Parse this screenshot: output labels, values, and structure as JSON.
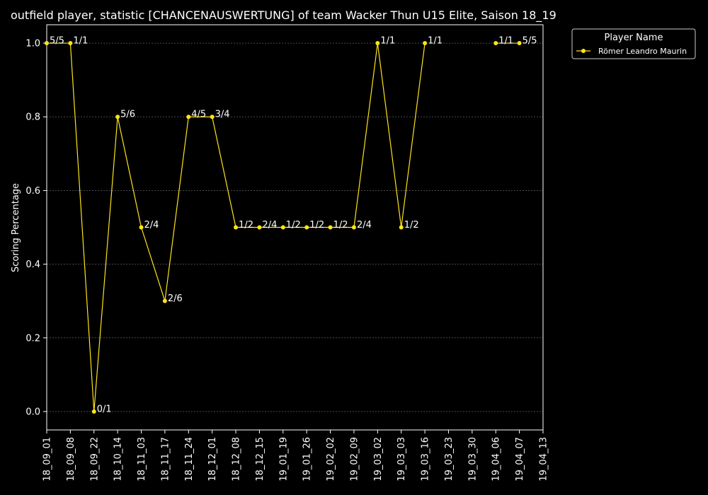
{
  "chart_data": {
    "type": "line",
    "title": "outfield player, statistic [CHANCENAUSWERTUNG] of team Wacker Thun U15 Elite, Saison 18_19",
    "xlabel": "",
    "ylabel": "Scoring Percentage",
    "ylim": [
      -0.05,
      1.05
    ],
    "yticks": [
      0.0,
      0.2,
      0.4,
      0.6,
      0.8,
      1.0
    ],
    "ytick_labels": [
      "0.0",
      "0.2",
      "0.4",
      "0.6",
      "0.8",
      "1.0"
    ],
    "categories": [
      "18_09_01",
      "18_09_08",
      "18_09_22",
      "18_10_14",
      "18_11_03",
      "18_11_17",
      "18_11_24",
      "18_12_01",
      "18_12_08",
      "18_12_15",
      "19_01_19",
      "19_01_26",
      "19_02_02",
      "19_02_09",
      "19_03_02",
      "19_03_03",
      "19_03_16",
      "19_03_23",
      "19_03_30",
      "19_04_06",
      "19_04_07",
      "19_04_13"
    ],
    "grid": true,
    "legend": {
      "title": "Player Name",
      "position": "outside-top-right"
    },
    "series": [
      {
        "name": "Römer Leandro Maurin",
        "color": "#ffe41a",
        "values": [
          1.0,
          1.0,
          0.0,
          0.8,
          0.5,
          0.3,
          0.8,
          0.8,
          0.5,
          0.5,
          0.5,
          0.5,
          0.5,
          0.5,
          1.0,
          0.5,
          1.0,
          null,
          null,
          1.0,
          1.0,
          null
        ]
      }
    ],
    "annotations": [
      {
        "x": "18_09_01",
        "y": 1.0,
        "text": "5/5"
      },
      {
        "x": "18_09_08",
        "y": 1.0,
        "text": "1/1"
      },
      {
        "x": "18_09_22",
        "y": 0.0,
        "text": "0/1"
      },
      {
        "x": "18_10_14",
        "y": 0.8,
        "text": "5/6"
      },
      {
        "x": "18_11_03",
        "y": 0.5,
        "text": "2/4"
      },
      {
        "x": "18_11_17",
        "y": 0.3,
        "text": "2/6"
      },
      {
        "x": "18_11_24",
        "y": 0.8,
        "text": "4/5"
      },
      {
        "x": "18_12_01",
        "y": 0.8,
        "text": "3/4"
      },
      {
        "x": "18_12_08",
        "y": 0.5,
        "text": "1/2"
      },
      {
        "x": "18_12_15",
        "y": 0.5,
        "text": "2/4"
      },
      {
        "x": "19_01_19",
        "y": 0.5,
        "text": "1/2"
      },
      {
        "x": "19_01_26",
        "y": 0.5,
        "text": "1/2"
      },
      {
        "x": "19_02_02",
        "y": 0.5,
        "text": "1/2"
      },
      {
        "x": "19_02_09",
        "y": 0.5,
        "text": "2/4"
      },
      {
        "x": "19_03_02",
        "y": 1.0,
        "text": "1/1"
      },
      {
        "x": "19_03_03",
        "y": 0.5,
        "text": "1/2"
      },
      {
        "x": "19_03_16",
        "y": 1.0,
        "text": "1/1"
      },
      {
        "x": "19_04_06",
        "y": 1.0,
        "text": "1/1"
      },
      {
        "x": "19_04_07",
        "y": 1.0,
        "text": "5/5"
      }
    ]
  }
}
